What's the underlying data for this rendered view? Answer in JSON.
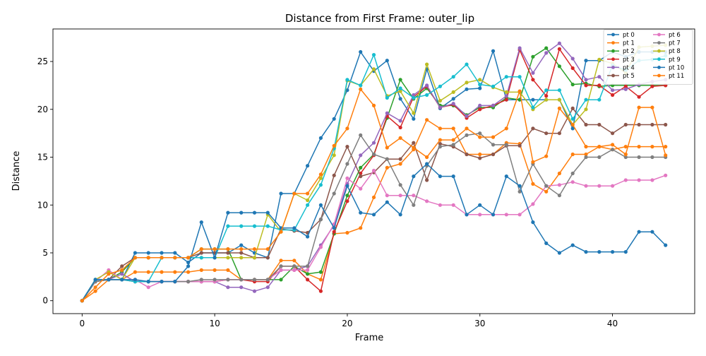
{
  "chart_data": {
    "type": "line",
    "title": "Distance from First Frame: outer_lip",
    "xlabel": "Frame",
    "ylabel": "Distance",
    "xlim": [
      -2.2,
      46.2
    ],
    "ylim": [
      -1.35,
      28.4
    ],
    "xticks": [
      0,
      10,
      20,
      30,
      40
    ],
    "yticks": [
      0,
      5,
      10,
      15,
      20,
      25
    ],
    "grid": false,
    "legend_position": "top-right",
    "series": [
      {
        "name": "pt 0",
        "color": "#1f77b4",
        "values": [
          0,
          2,
          2.2,
          2.2,
          5,
          5,
          5,
          5,
          4,
          5,
          5,
          5,
          5.8,
          5,
          4.5,
          11.2,
          11.2,
          14.1,
          17,
          19,
          22,
          26,
          24,
          25.1,
          21.1,
          19,
          24.2,
          20.1,
          21.1,
          22.1,
          22.2,
          26.1,
          21,
          21,
          21,
          21,
          21,
          18,
          25.1,
          25.1,
          26,
          25.5,
          26,
          26,
          26
        ]
      },
      {
        "name": "pt 1",
        "color": "#ff7f0e",
        "values": [
          0,
          1,
          2.2,
          2.2,
          3,
          3,
          3,
          3,
          3,
          3.2,
          3.2,
          3.2,
          2.2,
          2.2,
          2.2,
          4.2,
          4.2,
          2.8,
          2.2,
          7,
          7.1,
          7.6,
          10.8,
          13.9,
          14.3,
          15.8,
          18.9,
          18,
          18,
          15.3,
          15.3,
          15.3,
          16.5,
          16.4,
          12.2,
          11.4,
          13.3,
          15.3,
          15.3,
          16.1,
          15.8,
          16.1,
          16.1,
          16.1,
          16.1
        ]
      },
      {
        "name": "pt 2",
        "color": "#2ca02c",
        "values": [
          0,
          2.2,
          2.2,
          3,
          4.5,
          4.5,
          4.5,
          4.5,
          4.5,
          5.4,
          5.4,
          5.4,
          2.2,
          2.2,
          2.2,
          2.2,
          3.6,
          2.8,
          3,
          7,
          11,
          13.9,
          15.3,
          19.1,
          23.1,
          21.1,
          22.2,
          20.4,
          20.4,
          19.4,
          20.2,
          20.2,
          21.2,
          21,
          25.5,
          26.4,
          24.5,
          22.6,
          22.7,
          22.4,
          22.5,
          22.5,
          22.5,
          22.5,
          22.5
        ]
      },
      {
        "name": "pt 3",
        "color": "#d62728",
        "values": [
          0,
          2,
          2.2,
          2.2,
          2,
          2,
          2,
          2,
          2,
          2,
          2,
          2.2,
          2.2,
          2,
          2,
          3.6,
          3.6,
          2.2,
          1,
          7.2,
          10.4,
          13.3,
          15.2,
          19.3,
          18.1,
          21.3,
          22.4,
          20.2,
          20.5,
          19.1,
          20,
          20.4,
          21,
          26.2,
          23.1,
          21.4,
          26.3,
          24.3,
          22.5,
          22.5,
          21.5,
          22.4,
          21.3,
          22.4,
          22.5
        ]
      },
      {
        "name": "pt 4",
        "color": "#9467bd",
        "values": [
          0,
          2,
          2.2,
          2.8,
          2,
          2,
          2,
          2,
          2,
          2,
          2,
          1.4,
          1.4,
          1,
          1.4,
          3.2,
          3.2,
          3.6,
          5.8,
          7.9,
          12.2,
          15.2,
          16.5,
          19.6,
          18.8,
          21.5,
          22.5,
          20.2,
          20.6,
          19.3,
          20.4,
          20.4,
          21.4,
          26.4,
          23.8,
          25.9,
          26.9,
          25.3,
          23.1,
          23.4,
          22,
          22.1,
          22.6,
          22.9,
          23.1
        ]
      },
      {
        "name": "pt 5",
        "color": "#8c564b",
        "values": [
          0,
          2,
          2.2,
          3.6,
          4.5,
          4.5,
          4.5,
          4.5,
          4.5,
          5,
          5,
          5,
          5,
          4.5,
          4.5,
          7.5,
          7.3,
          7.1,
          8.5,
          13.1,
          16.1,
          13,
          13.4,
          14.8,
          14.8,
          16.5,
          12.6,
          16.4,
          16.1,
          15.3,
          14.9,
          15.3,
          16.2,
          16.2,
          18,
          17.5,
          17.5,
          20.1,
          18.4,
          18.4,
          17.5,
          18.4,
          18.4,
          18.4,
          18.4
        ]
      },
      {
        "name": "pt 6",
        "color": "#e377c2",
        "values": [
          0,
          2,
          3.2,
          2.2,
          2.2,
          1.4,
          2,
          2,
          2,
          2,
          2,
          2.2,
          2.2,
          2.2,
          2.2,
          3.2,
          3.2,
          3.2,
          5.6,
          8,
          12.8,
          11.7,
          13.6,
          11,
          11,
          11,
          10.4,
          10,
          10,
          9,
          9,
          9,
          9,
          9,
          10.1,
          12,
          12.1,
          12.4,
          12,
          12,
          12,
          12.6,
          12.6,
          12.6,
          13.1
        ]
      },
      {
        "name": "pt 7",
        "color": "#7f7f7f",
        "values": [
          0,
          2,
          2.2,
          2.2,
          2,
          2,
          2,
          2,
          2,
          2.2,
          2.2,
          2.2,
          2.2,
          2.2,
          2.2,
          3.6,
          3.6,
          3.6,
          8.5,
          11.2,
          14.3,
          17.3,
          15.3,
          14.8,
          12.1,
          10,
          14.1,
          16.1,
          16.3,
          17.3,
          17.5,
          16.3,
          16.3,
          11.4,
          14.3,
          12,
          11,
          13.3,
          15,
          15,
          15.8,
          15,
          15,
          15,
          15
        ]
      },
      {
        "name": "pt 8",
        "color": "#bcbd22",
        "values": [
          0,
          2.2,
          3,
          2.2,
          4.5,
          4.5,
          4.5,
          4.5,
          4.5,
          4.5,
          4.5,
          4.5,
          4.5,
          4.5,
          9,
          7.2,
          11.2,
          10.5,
          12.8,
          15.2,
          23,
          22.5,
          24.2,
          21.4,
          21.9,
          19.6,
          24.7,
          20.9,
          21.8,
          22.8,
          23.1,
          22.3,
          21.8,
          21.8,
          20,
          21,
          21,
          18.4,
          20,
          25.2,
          24.8,
          23.8,
          26.5,
          26.6,
          26.7
        ]
      },
      {
        "name": "pt 9",
        "color": "#17becf",
        "values": [
          0,
          2.2,
          2.2,
          2.2,
          2,
          2,
          4.5,
          4.5,
          4.5,
          4.5,
          4.5,
          7.8,
          7.8,
          7.8,
          7.8,
          7.4,
          7.4,
          10,
          12.1,
          15.9,
          23.1,
          22.5,
          25.7,
          21.2,
          22.2,
          21.2,
          21.5,
          22.4,
          23.4,
          24.7,
          22.6,
          22.4,
          23.4,
          23.4,
          20.2,
          22,
          22,
          19,
          21,
          21,
          24.6,
          24.1,
          25.1,
          25.2,
          25.6
        ]
      },
      {
        "name": "pt 10",
        "color": "#1f77b4",
        "values": [
          0,
          2.2,
          2.2,
          2.2,
          2.2,
          2,
          2,
          2,
          3.6,
          8.2,
          4.5,
          9.2,
          9.2,
          9.2,
          9.2,
          7.6,
          7.6,
          6.7,
          10,
          7.6,
          12,
          9.2,
          9,
          10.3,
          9,
          13,
          14.3,
          13,
          13,
          9,
          10,
          9,
          13,
          12,
          8.2,
          6,
          5,
          5.8,
          5.1,
          5.1,
          5.1,
          5.1,
          7.2,
          7.2,
          5.8
        ]
      },
      {
        "name": "pt 11",
        "color": "#ff7f0e",
        "values": [
          0,
          1.4,
          2.8,
          3.2,
          4.5,
          4.5,
          4.5,
          4.5,
          4.5,
          5.4,
          5.4,
          5.4,
          5.4,
          5.4,
          5.4,
          7.2,
          11.2,
          11.2,
          13.2,
          16.2,
          18,
          22.1,
          20.4,
          16,
          17,
          16,
          15,
          16.8,
          16.8,
          18,
          17.1,
          17.1,
          18,
          21.9,
          14.5,
          15.1,
          20.1,
          18.4,
          16.1,
          16.1,
          16.3,
          15.3,
          20.2,
          20.2,
          15.2
        ]
      }
    ]
  }
}
